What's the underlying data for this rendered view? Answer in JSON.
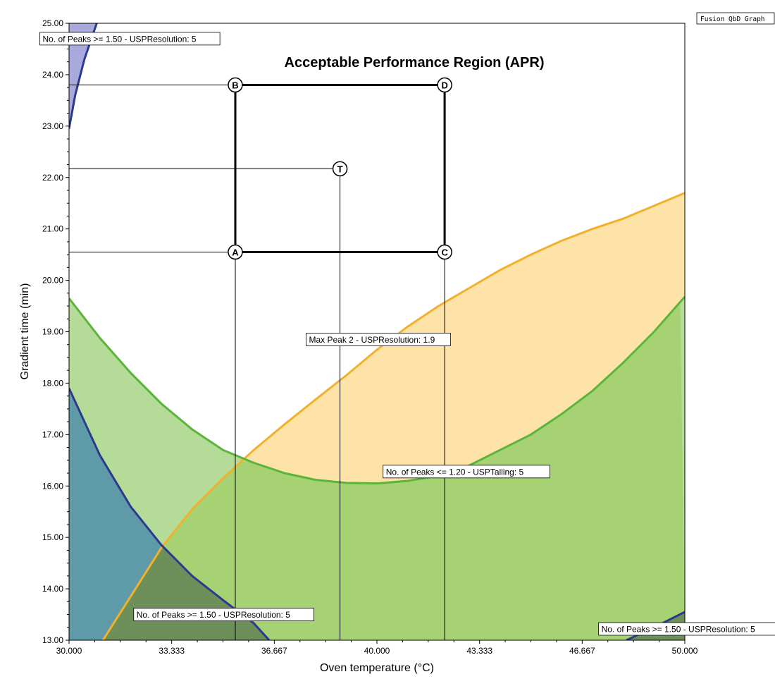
{
  "watermark": "Fusion QbD Graph",
  "chart_data": {
    "type": "area",
    "title": "Acceptable Performance Region (APR)",
    "xlabel": "Oven temperature (°C)",
    "ylabel": "Gradient time (min)",
    "xlim": [
      30,
      50
    ],
    "ylim": [
      13,
      25
    ],
    "x_ticks": [
      "30.000",
      "33.333",
      "36.667",
      "40.000",
      "43.333",
      "46.667",
      "50.000"
    ],
    "y_ticks": [
      "13.00",
      "14.00",
      "15.00",
      "16.00",
      "17.00",
      "18.00",
      "19.00",
      "20.00",
      "21.00",
      "22.00",
      "23.00",
      "24.00",
      "25.00"
    ],
    "grid": false,
    "colors": {
      "orange_fill": "#fde3a7",
      "orange_line": "#f2b12c",
      "green_fill": "#a6d274",
      "green_light": "#b4dc98",
      "green_line": "#5ab53a",
      "blue_fill": "#5f9aa8",
      "dark_fill": "#6d8f5a",
      "blue_top": "#a9a9dd",
      "blue_line": "#2a3a8c"
    },
    "regions": [
      {
        "name": "Max Peak 2 - USPResolution: 1.9",
        "color": "orange",
        "boundary": [
          [
            31.1,
            13.0
          ],
          [
            32.0,
            13.85
          ],
          [
            33.0,
            14.8
          ],
          [
            34.0,
            15.55
          ],
          [
            35.0,
            16.15
          ],
          [
            36.0,
            16.7
          ],
          [
            37.0,
            17.2
          ],
          [
            38.0,
            17.68
          ],
          [
            39.0,
            18.15
          ],
          [
            40.0,
            18.65
          ],
          [
            41.0,
            19.1
          ],
          [
            42.0,
            19.5
          ],
          [
            43.0,
            19.85
          ],
          [
            44.0,
            20.2
          ],
          [
            45.0,
            20.5
          ],
          [
            46.0,
            20.77
          ],
          [
            47.0,
            21.0
          ],
          [
            48.0,
            21.2
          ],
          [
            49.0,
            21.45
          ],
          [
            50.0,
            21.7
          ]
        ]
      },
      {
        "name": "No. of Peaks <= 1.20 - USPTailing: 5",
        "color": "green",
        "boundary": [
          [
            30.0,
            19.65
          ],
          [
            31.0,
            18.88
          ],
          [
            32.0,
            18.2
          ],
          [
            33.0,
            17.6
          ],
          [
            34.0,
            17.1
          ],
          [
            35.0,
            16.7
          ],
          [
            36.0,
            16.45
          ],
          [
            37.0,
            16.25
          ],
          [
            38.0,
            16.12
          ],
          [
            39.0,
            16.06
          ],
          [
            40.0,
            16.05
          ],
          [
            41.0,
            16.1
          ],
          [
            42.0,
            16.2
          ],
          [
            43.0,
            16.4
          ],
          [
            44.0,
            16.7
          ],
          [
            45.0,
            17.0
          ],
          [
            46.0,
            17.4
          ],
          [
            47.0,
            17.85
          ],
          [
            48.0,
            18.4
          ],
          [
            49.0,
            19.0
          ],
          [
            50.0,
            19.68
          ]
        ]
      },
      {
        "name": "No. of Peaks >= 1.50 - USPResolution: 5",
        "color": "blue",
        "boundary": [
          [
            30.0,
            17.9
          ],
          [
            31.0,
            16.6
          ],
          [
            32.0,
            15.6
          ],
          [
            33.0,
            14.85
          ],
          [
            34.0,
            14.25
          ],
          [
            35.0,
            13.78
          ],
          [
            36.0,
            13.33
          ],
          [
            36.5,
            13.0
          ]
        ]
      },
      {
        "name": "No. of Peaks >= 1.50 - USPResolution: 5",
        "color": "blue",
        "boundary": [
          [
            48.1,
            13.0
          ],
          [
            49.0,
            13.25
          ],
          [
            50.0,
            13.55
          ]
        ]
      },
      {
        "name": "No. of Peaks >= 1.50 - USPResolution: 5",
        "color": "blue",
        "boundary": [
          [
            30.0,
            22.95
          ],
          [
            30.2,
            23.6
          ],
          [
            30.5,
            24.3
          ],
          [
            30.9,
            25.0
          ]
        ]
      }
    ],
    "points": [
      {
        "label": "A",
        "x": 35.4,
        "y": 20.55
      },
      {
        "label": "B",
        "x": 35.4,
        "y": 23.8
      },
      {
        "label": "C",
        "x": 42.2,
        "y": 20.55
      },
      {
        "label": "D",
        "x": 42.2,
        "y": 23.8
      },
      {
        "label": "T",
        "x": 38.8,
        "y": 22.17
      }
    ],
    "annotations": [
      {
        "text": "No. of Peaks >= 1.50 - USPResolution: 5",
        "x": 29.05,
        "y": 24.7
      },
      {
        "text": "Max Peak 2 - USPResolution: 1.9",
        "x": 37.7,
        "y": 18.85
      },
      {
        "text": "No. of Peaks <= 1.20 - USPTailing: 5",
        "x": 40.2,
        "y": 16.28
      },
      {
        "text": "No. of Peaks >= 1.50 - USPResolution: 5",
        "x": 32.1,
        "y": 13.5
      },
      {
        "text": "No. of Peaks >= 1.50 - USPResolution: 5",
        "x": 47.2,
        "y": 13.22
      }
    ]
  }
}
